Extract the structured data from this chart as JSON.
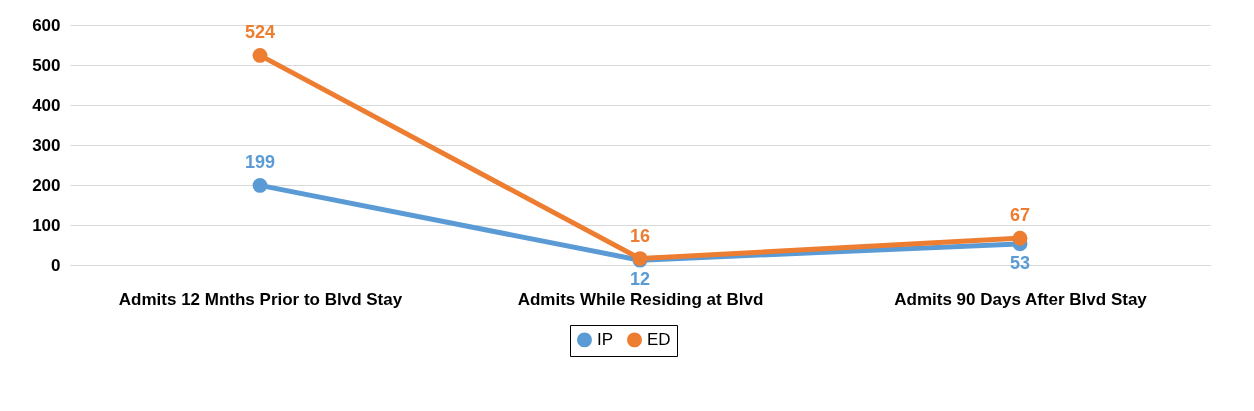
{
  "chart_data": {
    "type": "line",
    "categories": [
      "Admits 12 Mnths Prior to Blvd Stay",
      "Admits While Residing at Blvd",
      "Admits 90 Days After Blvd Stay"
    ],
    "series": [
      {
        "name": "IP",
        "color": "#5b9bd5",
        "values": [
          199,
          12,
          53
        ]
      },
      {
        "name": "ED",
        "color": "#ed7d31",
        "values": [
          524,
          16,
          67
        ]
      }
    ],
    "ylim": [
      0,
      600
    ],
    "yticks": [
      0,
      100,
      200,
      300,
      400,
      500,
      600
    ],
    "grid": "y",
    "legend": "bottom",
    "marker": "circle",
    "line_style": "solid",
    "data_labels": true
  }
}
